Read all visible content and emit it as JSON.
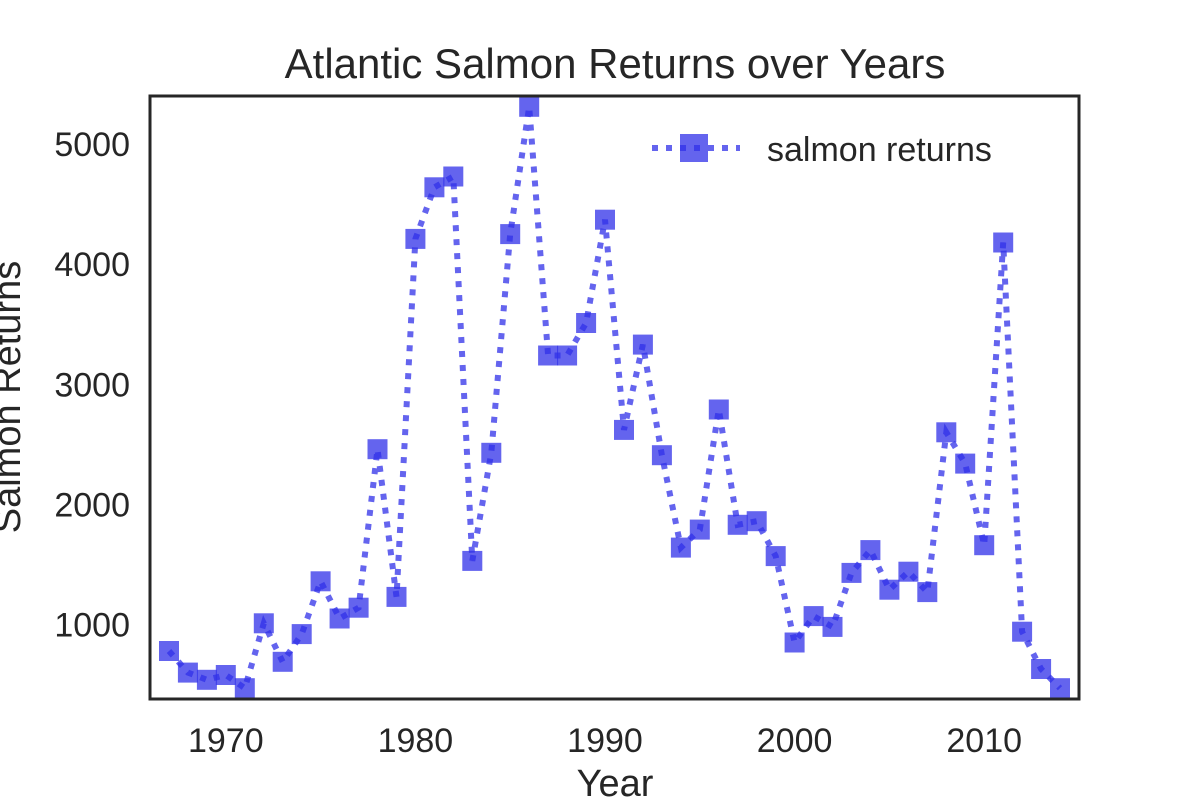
{
  "chart_data": {
    "type": "line",
    "title": "Atlantic Salmon Returns over Years",
    "xlabel": "Year",
    "ylabel": "Salmon Returns",
    "xlim": [
      1966,
      2015
    ],
    "ylim": [
      380,
      5400
    ],
    "xticks": [
      1970,
      1980,
      1990,
      2000,
      2010
    ],
    "yticks": [
      1000,
      2000,
      3000,
      4000,
      5000
    ],
    "grid": false,
    "legend_position": "top-right",
    "colors": {
      "series": "#3030e8"
    },
    "series": [
      {
        "name": "salmon returns",
        "style": "dotted line with square markers",
        "x": [
          1967,
          1968,
          1969,
          1970,
          1971,
          1972,
          1973,
          1974,
          1975,
          1976,
          1977,
          1978,
          1979,
          1980,
          1981,
          1982,
          1983,
          1984,
          1985,
          1986,
          1987,
          1988,
          1989,
          1990,
          1991,
          1992,
          1993,
          1994,
          1995,
          1996,
          1997,
          1998,
          1999,
          2000,
          2001,
          2002,
          2003,
          2004,
          2005,
          2006,
          2007,
          2008,
          2009,
          2010,
          2011,
          2012,
          2013,
          2014
        ],
        "values": [
          780,
          600,
          540,
          580,
          470,
          1010,
          690,
          920,
          1360,
          1050,
          1140,
          2460,
          1230,
          4210,
          4640,
          4730,
          1530,
          2430,
          4250,
          5310,
          3240,
          3240,
          3510,
          4370,
          2620,
          3330,
          2410,
          1640,
          1790,
          2790,
          1830,
          1860,
          1570,
          850,
          1070,
          980,
          1430,
          1620,
          1290,
          1440,
          1270,
          2600,
          2340,
          1660,
          4180,
          940,
          630,
          470
        ]
      }
    ]
  }
}
